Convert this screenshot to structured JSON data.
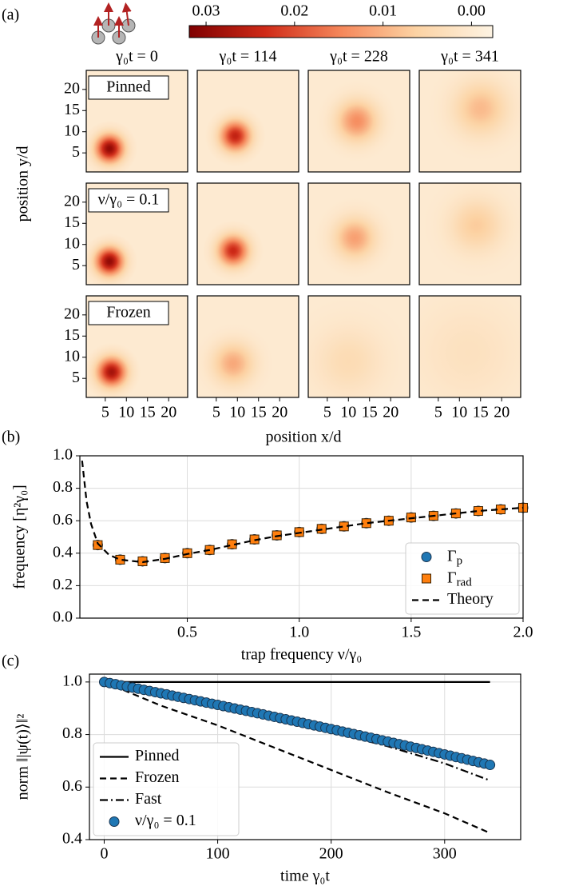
{
  "chart_data": [
    {
      "type": "heatmap",
      "label": "(a)",
      "xlabel": "position x/d",
      "ylabel": "position y/d",
      "xlim": [
        0.5,
        24.5
      ],
      "ylim": [
        0.5,
        24.5
      ],
      "xticks": [
        5,
        10,
        15,
        20
      ],
      "yticks": [
        5,
        10,
        15,
        20
      ],
      "clim": [
        0.0319,
        -0.0024
      ],
      "cticks": [
        0.03,
        0.02,
        0.01,
        {
          "value": 0,
          "label": "0.00"
        }
      ],
      "colormap": [
        "#fdf3e3",
        "#fcd3a4",
        "#f5875a",
        "#cf2a18",
        "#7f0000"
      ],
      "columns": [
        "γ₀t = 0",
        "γ₀t = 114",
        "γ₀t = 228",
        "γ₀t = 341"
      ],
      "rows": [
        {
          "name": "Pinned",
          "panels": [
            {
              "x": 6,
              "y": 6,
              "peak": 0.03,
              "sigma": 2.2
            },
            {
              "x": 9.5,
              "y": 9,
              "peak": 0.025,
              "sigma": 2.4
            },
            {
              "x": 12,
              "y": 12.5,
              "peak": 0.014,
              "sigma": 3.2
            },
            {
              "x": 15,
              "y": 15.5,
              "peak": 0.009,
              "sigma": 4.2
            }
          ]
        },
        {
          "name": "ν/γ₀ = 0.1",
          "panels": [
            {
              "x": 6,
              "y": 6,
              "peak": 0.03,
              "sigma": 2.2
            },
            {
              "x": 9,
              "y": 8.5,
              "peak": 0.024,
              "sigma": 2.4
            },
            {
              "x": 11.5,
              "y": 11.5,
              "peak": 0.012,
              "sigma": 3.2
            },
            {
              "x": 14,
              "y": 14.5,
              "peak": 0.007,
              "sigma": 4.2
            }
          ]
        },
        {
          "name": "Frozen",
          "panels": [
            {
              "x": 6.5,
              "y": 6.5,
              "peak": 0.028,
              "sigma": 2.3
            },
            {
              "x": 9,
              "y": 8.5,
              "peak": 0.011,
              "sigma": 3.2
            },
            {
              "x": 10,
              "y": 9,
              "peak": 0.004,
              "sigma": 5.5
            },
            {
              "x": 12,
              "y": 11,
              "peak": 0.0025,
              "sigma": 8
            }
          ]
        }
      ]
    },
    {
      "type": "line",
      "label": "(b)",
      "xlabel": "trap frequency ν/γ₀",
      "ylabel": "frequency [η²γ₀]",
      "xlim": [
        0.02,
        2.0
      ],
      "ylim": [
        0,
        1
      ],
      "xticks": [
        0.5,
        {
          "value": 1,
          "label": "1.0"
        },
        1.5,
        {
          "value": 2,
          "label": "2.0"
        }
      ],
      "yticks": [
        {
          "value": 0,
          "label": "0.0"
        },
        0.2,
        0.4,
        0.6,
        0.8,
        {
          "value": 1,
          "label": "1.0"
        }
      ],
      "grid": true,
      "legend": "lower right",
      "series": [
        {
          "name": "Γp",
          "color": "#1f77b4",
          "marker": "o",
          "linestyle": "none",
          "x": [
            0.1,
            0.2,
            0.3,
            0.4,
            0.5,
            0.6,
            0.7,
            0.8,
            0.9,
            1.0,
            1.1,
            1.2,
            1.3,
            1.4,
            1.5,
            1.6,
            1.7,
            1.8,
            1.9,
            2.0
          ],
          "values": [
            0.45,
            0.36,
            0.35,
            0.37,
            0.4,
            0.42,
            0.455,
            0.485,
            0.51,
            0.53,
            0.55,
            0.565,
            0.585,
            0.6,
            0.62,
            0.63,
            0.645,
            0.66,
            0.67,
            0.68
          ]
        },
        {
          "name": "Γrad",
          "color": "#ff7f0e",
          "marker": "s",
          "linestyle": "none",
          "x": [
            0.1,
            0.2,
            0.3,
            0.4,
            0.5,
            0.6,
            0.7,
            0.8,
            0.9,
            1.0,
            1.1,
            1.2,
            1.3,
            1.4,
            1.5,
            1.6,
            1.7,
            1.8,
            1.9,
            2.0
          ],
          "values": [
            0.45,
            0.36,
            0.35,
            0.37,
            0.4,
            0.42,
            0.455,
            0.485,
            0.51,
            0.53,
            0.55,
            0.565,
            0.585,
            0.6,
            0.62,
            0.63,
            0.645,
            0.66,
            0.67,
            0.68
          ]
        },
        {
          "name": "Theory",
          "color": "#000000",
          "marker": null,
          "linestyle": "--",
          "x": [
            0.03,
            0.05,
            0.07,
            0.1,
            0.15,
            0.2,
            0.3,
            0.4,
            0.5,
            0.6,
            0.7,
            0.8,
            0.9,
            1.0,
            1.1,
            1.2,
            1.3,
            1.4,
            1.5,
            1.6,
            1.7,
            1.8,
            1.9,
            2.0
          ],
          "values": [
            0.97,
            0.72,
            0.58,
            0.46,
            0.39,
            0.36,
            0.345,
            0.365,
            0.395,
            0.42,
            0.45,
            0.48,
            0.505,
            0.525,
            0.545,
            0.565,
            0.585,
            0.6,
            0.615,
            0.63,
            0.645,
            0.66,
            0.67,
            0.68
          ]
        }
      ]
    },
    {
      "type": "line",
      "label": "(c)",
      "xlabel": "time γ₀t",
      "ylabel": "norm ‖|ψ(t)⟩‖²",
      "xlim": [
        -13,
        367
      ],
      "ylim": [
        0.4,
        1.03
      ],
      "xticks": [
        0,
        100,
        200,
        300
      ],
      "yticks": [
        0.4,
        0.6,
        0.8,
        {
          "value": 1,
          "label": "1.0"
        }
      ],
      "grid": true,
      "legend": "lower left",
      "series": [
        {
          "name": "Pinned",
          "color": "#000000",
          "marker": null,
          "linestyle": "-",
          "x": [
            0,
            340
          ],
          "values": [
            1.0,
            1.0
          ]
        },
        {
          "name": "Frozen",
          "color": "#000000",
          "marker": null,
          "linestyle": "--",
          "x": [
            0,
            50,
            100,
            150,
            200,
            250,
            300,
            340
          ],
          "values": [
            1.0,
            0.91,
            0.835,
            0.75,
            0.665,
            0.58,
            0.5,
            0.425
          ]
        },
        {
          "name": "Fast",
          "color": "#000000",
          "marker": null,
          "linestyle": "-.",
          "x": [
            0,
            50,
            100,
            150,
            200,
            250,
            300,
            340
          ],
          "values": [
            1.0,
            0.96,
            0.915,
            0.865,
            0.81,
            0.755,
            0.69,
            0.625
          ]
        },
        {
          "name": "ν/γ₀ = 0.1",
          "color": "#1f77b4",
          "marker": "o",
          "linestyle": "none",
          "x": [
            0,
            5,
            10,
            15,
            20,
            25,
            30,
            35,
            40,
            45,
            50,
            55,
            60,
            65,
            70,
            75,
            80,
            85,
            90,
            95,
            100,
            105,
            110,
            115,
            120,
            125,
            130,
            135,
            140,
            145,
            150,
            155,
            160,
            165,
            170,
            175,
            180,
            185,
            190,
            195,
            200,
            205,
            210,
            215,
            220,
            225,
            230,
            235,
            240,
            245,
            250,
            255,
            260,
            265,
            270,
            275,
            280,
            285,
            290,
            295,
            300,
            305,
            310,
            315,
            320,
            325,
            330,
            335,
            340
          ],
          "values": [
            1.0,
            0.9957,
            0.9915,
            0.9872,
            0.9829,
            0.9786,
            0.9743,
            0.97,
            0.9656,
            0.9613,
            0.9569,
            0.9526,
            0.9482,
            0.9438,
            0.9394,
            0.935,
            0.9305,
            0.9261,
            0.9216,
            0.9172,
            0.9127,
            0.9082,
            0.9037,
            0.8992,
            0.8947,
            0.8902,
            0.8856,
            0.8811,
            0.8765,
            0.8719,
            0.8673,
            0.8627,
            0.8581,
            0.8535,
            0.8489,
            0.8442,
            0.8395,
            0.8349,
            0.8302,
            0.8255,
            0.8208,
            0.8161,
            0.8114,
            0.8066,
            0.8019,
            0.7971,
            0.7923,
            0.7876,
            0.7828,
            0.7779,
            0.7731,
            0.7683,
            0.7635,
            0.7586,
            0.7537,
            0.7489,
            0.744,
            0.7391,
            0.7342,
            0.7292,
            0.7243,
            0.7194,
            0.7144,
            0.7095,
            0.7045,
            0.6995,
            0.6945,
            0.6894,
            0.6844
          ]
        }
      ]
    }
  ]
}
